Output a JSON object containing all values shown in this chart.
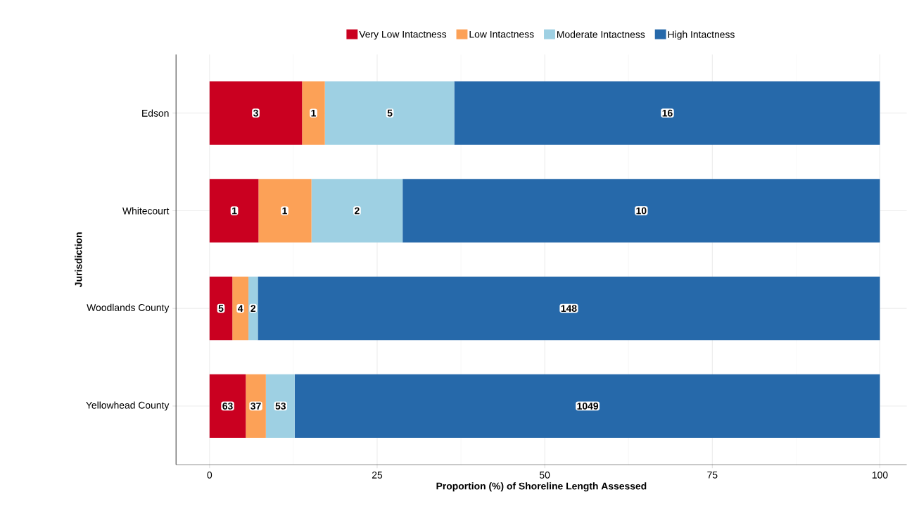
{
  "chart_data": {
    "type": "bar",
    "orientation": "horizontal",
    "stacked": true,
    "xlabel": "Proportion (%) of Shoreline Length Assessed",
    "ylabel": "Jurisdiction",
    "categories": [
      "Edson",
      "Whitecourt",
      "Woodlands County",
      "Yellowhead County"
    ],
    "series": [
      {
        "name": "Very Low Intactness",
        "color": "#ca0020",
        "values": [
          13.8,
          7.3,
          3.4,
          5.4
        ]
      },
      {
        "name": "Low Intactness",
        "color": "#fca157",
        "values": [
          3.4,
          7.9,
          2.4,
          3.0
        ]
      },
      {
        "name": "Moderate Intactness",
        "color": "#9ed0e3",
        "values": [
          19.3,
          13.6,
          1.4,
          4.3
        ]
      },
      {
        "name": "High Intactness",
        "color": "#2669aa",
        "values": [
          63.5,
          71.2,
          92.8,
          87.3
        ]
      }
    ],
    "annotations": [
      {
        "text": "3",
        "x": 6.9,
        "y": "Edson"
      },
      {
        "text": "1",
        "x": 15.5,
        "y": "Edson"
      },
      {
        "text": "5",
        "x": 26.9,
        "y": "Edson"
      },
      {
        "text": "16",
        "x": 68.3,
        "y": "Edson"
      },
      {
        "text": "1",
        "x": 3.7,
        "y": "Whitecourt"
      },
      {
        "text": "1",
        "x": 11.2,
        "y": "Whitecourt"
      },
      {
        "text": "2",
        "x": 22.0,
        "y": "Whitecourt"
      },
      {
        "text": "10",
        "x": 64.4,
        "y": "Whitecourt"
      },
      {
        "text": "5",
        "x": 1.7,
        "y": "Woodlands County"
      },
      {
        "text": "4",
        "x": 4.6,
        "y": "Woodlands County"
      },
      {
        "text": "2",
        "x": 6.5,
        "y": "Woodlands County"
      },
      {
        "text": "148",
        "x": 53.6,
        "y": "Woodlands County"
      },
      {
        "text": "63",
        "x": 2.7,
        "y": "Yellowhead County"
      },
      {
        "text": "37",
        "x": 6.9,
        "y": "Yellowhead County"
      },
      {
        "text": "53",
        "x": 10.6,
        "y": "Yellowhead County"
      },
      {
        "text": "1049",
        "x": 56.4,
        "y": "Yellowhead County"
      }
    ],
    "xlim": [
      -5,
      104
    ],
    "xticks": [
      0,
      25,
      50,
      75,
      100
    ],
    "grid": true,
    "legend": "top"
  }
}
